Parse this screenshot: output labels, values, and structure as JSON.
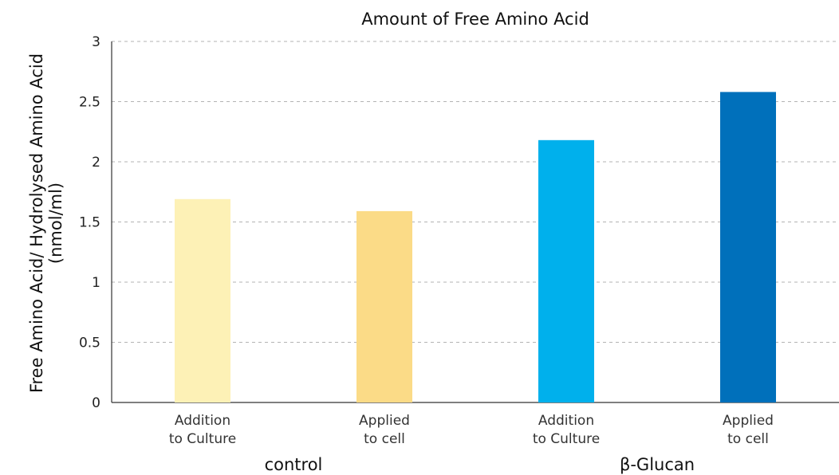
{
  "chart_data": {
    "type": "bar",
    "title": "Amount of Free Amino Acid",
    "ylabel_line1": "Free Amino Acid/ Hydrolysed Amino Acid",
    "ylabel_line2": "(nmol/ml)",
    "ylim": [
      0,
      3
    ],
    "yticks": [
      "0",
      "0.5",
      "1",
      "1.5",
      "2",
      "2.5",
      "3"
    ],
    "grid": true,
    "categories": [
      {
        "line1": "Addition",
        "line2": "to Culture"
      },
      {
        "line1": "Applied",
        "line2": "to cell"
      },
      {
        "line1": "Addition",
        "line2": "to Culture"
      },
      {
        "line1": "Applied",
        "line2": "to cell"
      }
    ],
    "values": [
      1.69,
      1.59,
      2.18,
      2.58
    ],
    "colors": [
      "#fdf1b6",
      "#fbdb87",
      "#00b0ec",
      "#0070bb"
    ],
    "groups": [
      {
        "label": "control",
        "members": [
          0,
          1
        ]
      },
      {
        "label": "β-Glucan",
        "members": [
          2,
          3
        ]
      }
    ]
  }
}
